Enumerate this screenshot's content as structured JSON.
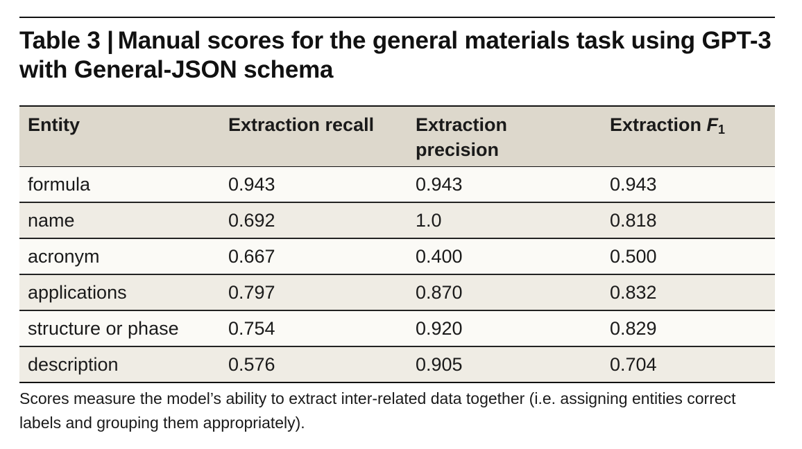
{
  "table": {
    "label": "Table 3 |",
    "title": "Manual scores for the general materials task using GPT-3 with General-JSON schema",
    "headers": {
      "entity": "Entity",
      "recall": "Extraction recall",
      "precision": "Extraction precision",
      "f1_prefix": "Extraction ",
      "f1_var": "F",
      "f1_sub": "1"
    },
    "rows": [
      {
        "entity": "formula",
        "recall": "0.943",
        "precision": "0.943",
        "f1": "0.943"
      },
      {
        "entity": "name",
        "recall": "0.692",
        "precision": "1.0",
        "f1": "0.818"
      },
      {
        "entity": "acronym",
        "recall": "0.667",
        "precision": "0.400",
        "f1": "0.500"
      },
      {
        "entity": "applications",
        "recall": "0.797",
        "precision": "0.870",
        "f1": "0.832"
      },
      {
        "entity": "structure or phase",
        "recall": "0.754",
        "precision": "0.920",
        "f1": "0.829"
      },
      {
        "entity": "description",
        "recall": "0.576",
        "precision": "0.905",
        "f1": "0.704"
      }
    ],
    "footnote": "Scores measure the model’s ability to extract inter-related data together (i.e. assigning entities correct labels and grouping them appropriately)."
  },
  "colors": {
    "header_background": "#ddd8cc",
    "row_light": "#fbfaf6",
    "row_dark": "#efece4",
    "rule": "#111111"
  }
}
